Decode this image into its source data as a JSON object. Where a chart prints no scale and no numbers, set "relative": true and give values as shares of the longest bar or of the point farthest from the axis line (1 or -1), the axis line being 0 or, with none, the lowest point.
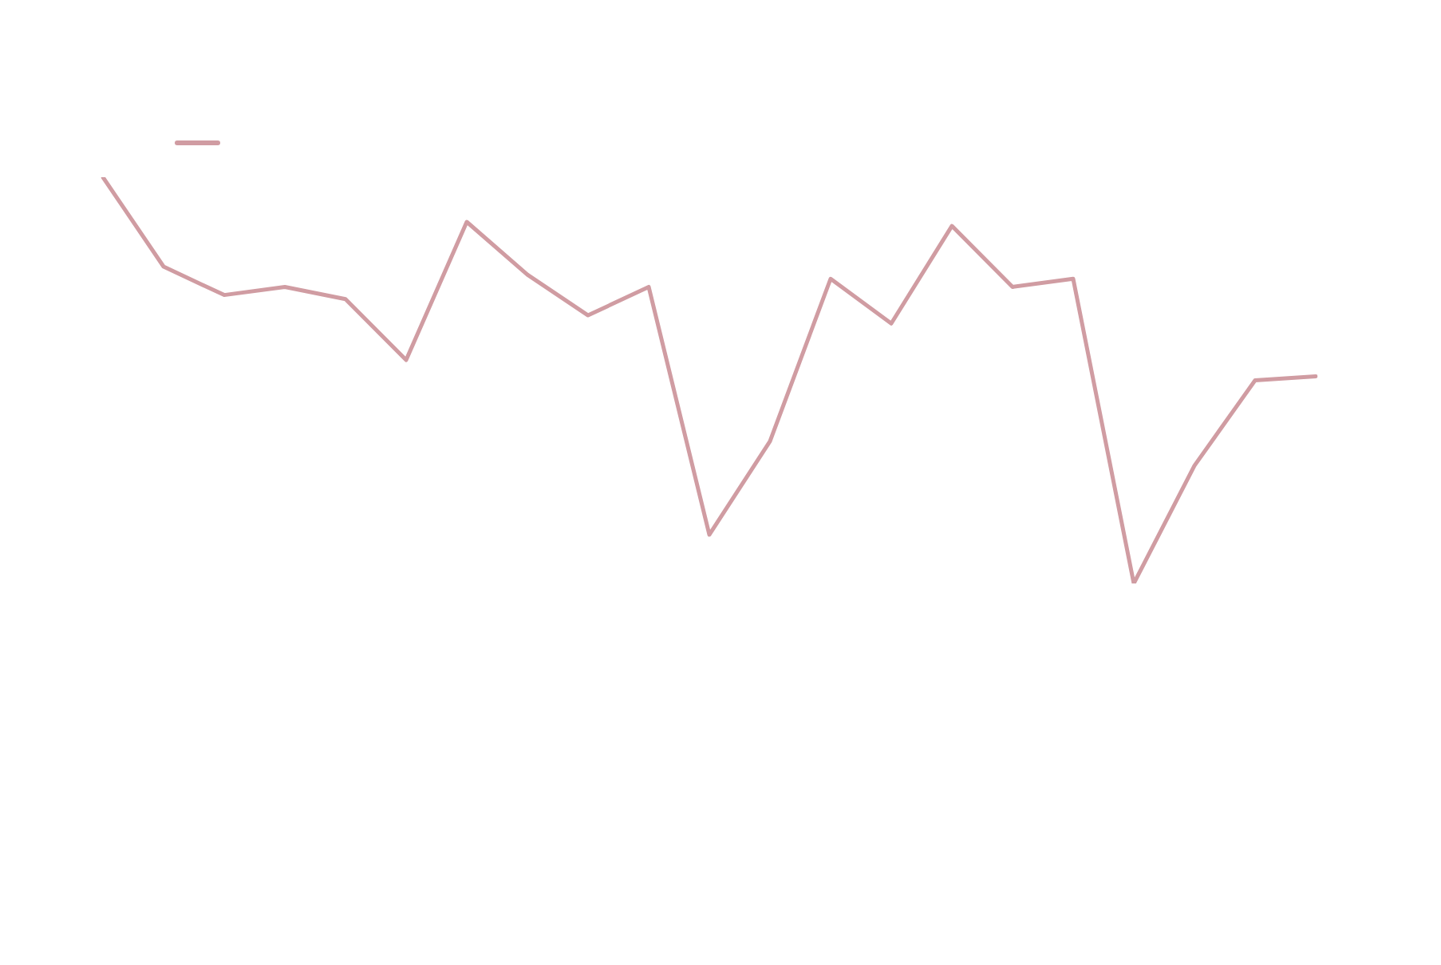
{
  "chart_data": {
    "type": "line",
    "relative": true,
    "marker": "none",
    "line_style": "solid",
    "categories": [
      null,
      null,
      null,
      null,
      null,
      null,
      null,
      null,
      null,
      null,
      null,
      null,
      null,
      null,
      null,
      null,
      null,
      null,
      null,
      null,
      null
    ],
    "series": [
      {
        "color": "#d09ca2",
        "values": [
          1.0,
          0.78,
          0.71,
          0.73,
          0.7,
          0.55,
          0.89,
          0.76,
          0.66,
          0.73,
          0.12,
          0.35,
          0.75,
          0.64,
          0.88,
          0.73,
          0.75,
          0.0,
          0.29,
          0.5,
          0.51
        ]
      }
    ]
  }
}
